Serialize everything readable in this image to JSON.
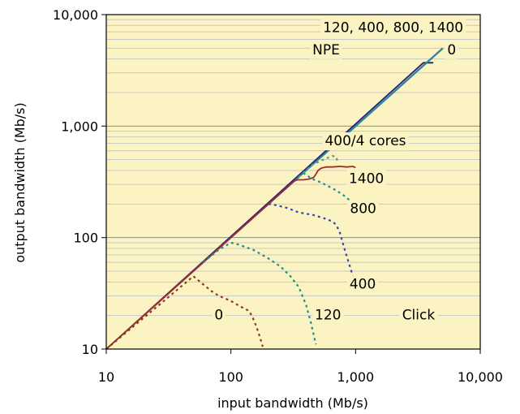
{
  "chart_data": {
    "type": "line",
    "xlabel": "input bandwidth (Mb/s)",
    "ylabel": "output bandwidth (Mb/s)",
    "x_scale": "log",
    "y_scale": "log",
    "xlim": [
      10,
      10000
    ],
    "ylim": [
      10,
      10000
    ],
    "x_ticks": [
      10,
      100,
      1000,
      10000
    ],
    "x_tick_labels": [
      "10",
      "100",
      "1,000",
      "10,000"
    ],
    "y_ticks": [
      10,
      100,
      1000,
      10000
    ],
    "y_tick_labels": [
      "10",
      "100",
      "1,000",
      "10,000"
    ],
    "grid": "horizontal minor",
    "background_color": "#FBF4C2",
    "annotations": [
      {
        "text": "120, 400, 800, 1400",
        "x": 2000,
        "y": 7600
      },
      {
        "text": "NPE",
        "x": 580,
        "y": 4800
      },
      {
        "text": "0",
        "x": 5900,
        "y": 4800
      },
      {
        "text": "400/4 cores",
        "x": 1200,
        "y": 730
      },
      {
        "text": "1400",
        "x": 1220,
        "y": 335
      },
      {
        "text": "800",
        "x": 1150,
        "y": 180
      },
      {
        "text": "400",
        "x": 1140,
        "y": 38
      },
      {
        "text": "0",
        "x": 80,
        "y": 20
      },
      {
        "text": "120",
        "x": 600,
        "y": 20
      },
      {
        "text": "Click",
        "x": 3200,
        "y": 20
      }
    ],
    "series": [
      {
        "color": "#1F1F7A",
        "style": "solid",
        "x": [
          10,
          3500,
          4200
        ],
        "y": [
          10,
          3700,
          3700
        ]
      },
      {
        "color": "#7A3FC0",
        "style": "solid",
        "x": [
          10,
          5000
        ],
        "y": [
          10,
          5000
        ]
      },
      {
        "color": "#1F8F8F",
        "style": "solid",
        "x": [
          10,
          5000
        ],
        "y": [
          10,
          4950
        ]
      },
      {
        "color": "#A52A2A",
        "style": "solid",
        "x": [
          10,
          320,
          340,
          380,
          420,
          460,
          480,
          500,
          530,
          580,
          650,
          750,
          850,
          950,
          1000
        ],
        "y": [
          10,
          320,
          330,
          330,
          335,
          345,
          370,
          400,
          420,
          430,
          430,
          435,
          430,
          435,
          425
        ]
      },
      {
        "color": "#8B3A1A",
        "style": "dotted",
        "x": [
          10,
          50,
          60,
          70,
          80,
          100,
          120,
          140,
          150,
          160,
          170,
          180
        ],
        "y": [
          10,
          45,
          38,
          33,
          30,
          27,
          24,
          22,
          19,
          16,
          13,
          10.5
        ]
      },
      {
        "color": "#1F8F8F",
        "style": "dotted",
        "x": [
          60,
          80,
          100,
          110,
          150,
          200,
          250,
          300,
          350,
          400,
          440,
          480
        ],
        "y": [
          60,
          78,
          90,
          88,
          78,
          65,
          55,
          45,
          36,
          25,
          17,
          11
        ]
      },
      {
        "color": "#3548B0",
        "style": "dotted",
        "x": [
          200,
          230,
          280,
          350,
          450,
          550,
          650,
          700,
          750,
          800,
          900,
          1000
        ],
        "y": [
          200,
          195,
          185,
          168,
          160,
          150,
          140,
          130,
          110,
          85,
          55,
          38
        ]
      },
      {
        "color": "#1F8F8F",
        "style": "dotted",
        "x": [
          380,
          450,
          500,
          550,
          600,
          700,
          800,
          900,
          1000
        ],
        "y": [
          380,
          335,
          320,
          305,
          290,
          265,
          240,
          215,
          195
        ]
      },
      {
        "color": "#5F9F5F",
        "style": "dotted",
        "x": [
          350,
          450,
          550,
          650,
          700,
          720
        ],
        "y": [
          350,
          450,
          500,
          540,
          530,
          470
        ]
      }
    ]
  }
}
